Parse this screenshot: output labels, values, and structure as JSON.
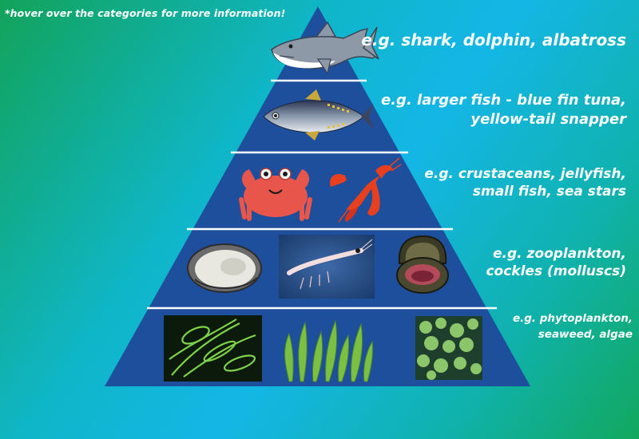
{
  "hint": "*hover over the categories for more information!",
  "levels": [
    {
      "lines": [
        "e.g. shark, dolphin, albatross"
      ],
      "images": [
        "shark-illustration"
      ]
    },
    {
      "lines": [
        "e.g. larger fish - blue fin tuna,",
        "yellow-tail snapper"
      ],
      "images": [
        "tuna-illustration"
      ]
    },
    {
      "lines": [
        "e.g. crustaceans, jellyfish,",
        "small fish, sea stars"
      ],
      "images": [
        "crab-illustration",
        "lobster-illustration"
      ]
    },
    {
      "lines": [
        "e.g. zooplankton,",
        "cockles (molluscs)"
      ],
      "images": [
        "oyster-illustration",
        "krill-photo",
        "cockle-illustration"
      ]
    },
    {
      "lines": [
        "e.g. phytoplankton,",
        "seaweed, algae"
      ],
      "images": [
        "phytoplankton-photo",
        "seaweed-illustration",
        "algae-photo"
      ]
    }
  ],
  "colors": {
    "pyramid": "#1e4f9c",
    "divider": "#ffffff",
    "text": "#ffffff"
  }
}
